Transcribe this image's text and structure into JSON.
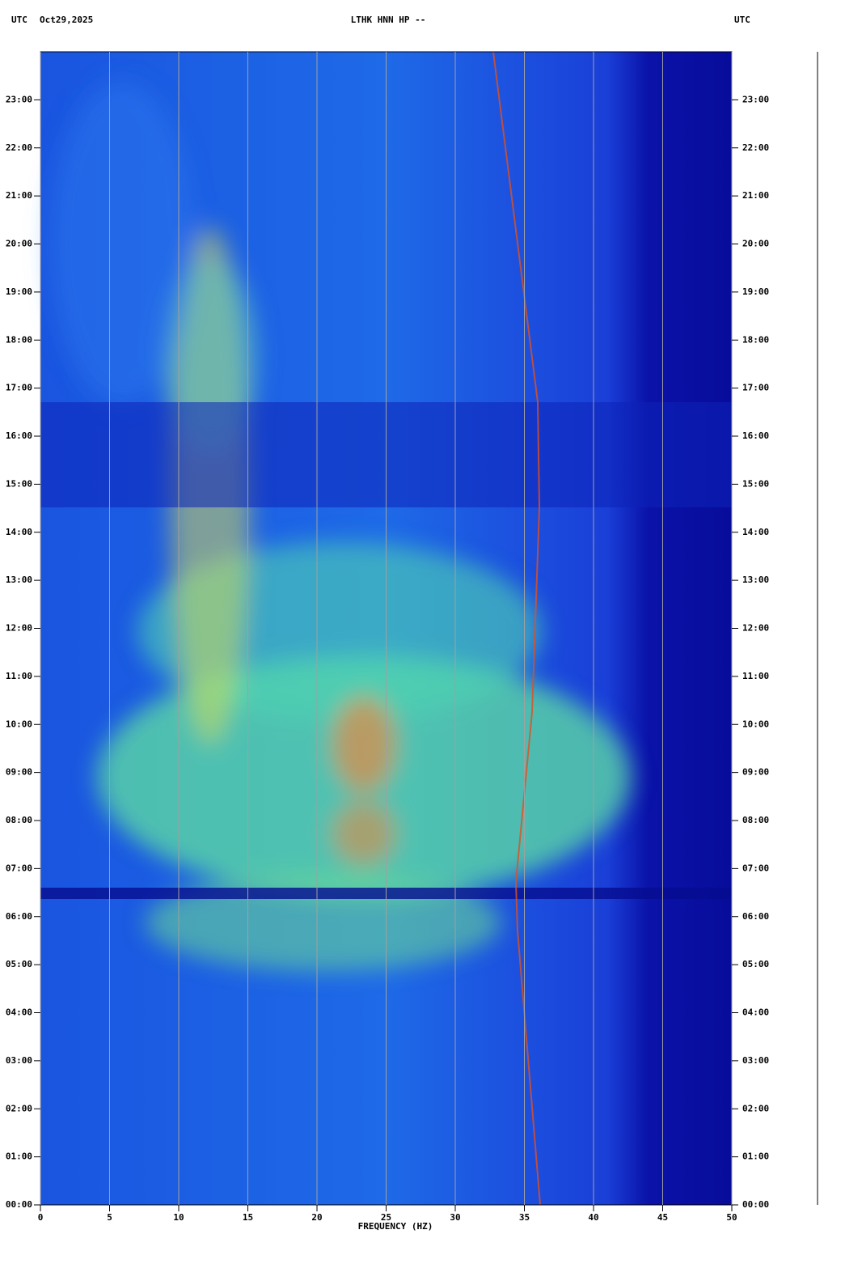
{
  "chart_data": {
    "type": "spectrogram",
    "title": "LTHK HNN HP --",
    "subtitle": "Oct29,2025",
    "time_zone_left": "UTC",
    "time_zone_right": "UTC",
    "x_label": "FREQUENCY (HZ)",
    "xlim": [
      0,
      50
    ],
    "xticks": [
      0,
      5,
      10,
      15,
      20,
      25,
      30,
      35,
      40,
      45,
      50
    ],
    "ylim": [
      0,
      24
    ],
    "yticks": [
      {
        "value": 0,
        "label": "00:00"
      },
      {
        "value": 1,
        "label": "01:00"
      },
      {
        "value": 2,
        "label": "02:00"
      },
      {
        "value": 3,
        "label": "03:00"
      },
      {
        "value": 4,
        "label": "04:00"
      },
      {
        "value": 5,
        "label": "05:00"
      },
      {
        "value": 6,
        "label": "06:00"
      },
      {
        "value": 7,
        "label": "07:00"
      },
      {
        "value": 8,
        "label": "08:00"
      },
      {
        "value": 9,
        "label": "09:00"
      },
      {
        "value": 10,
        "label": "10:00"
      },
      {
        "value": 11,
        "label": "11:00"
      },
      {
        "value": 12,
        "label": "12:00"
      },
      {
        "value": 13,
        "label": "13:00"
      },
      {
        "value": 14,
        "label": "14:00"
      },
      {
        "value": 15,
        "label": "15:00"
      },
      {
        "value": 16,
        "label": "16:00"
      },
      {
        "value": 17,
        "label": "17:00"
      },
      {
        "value": 18,
        "label": "18:00"
      },
      {
        "value": 19,
        "label": "19:00"
      },
      {
        "value": 20,
        "label": "20:00"
      },
      {
        "value": 21,
        "label": "21:00"
      },
      {
        "value": 22,
        "label": "22:00"
      },
      {
        "value": 23,
        "label": "23:00"
      }
    ],
    "grid": true
  }
}
